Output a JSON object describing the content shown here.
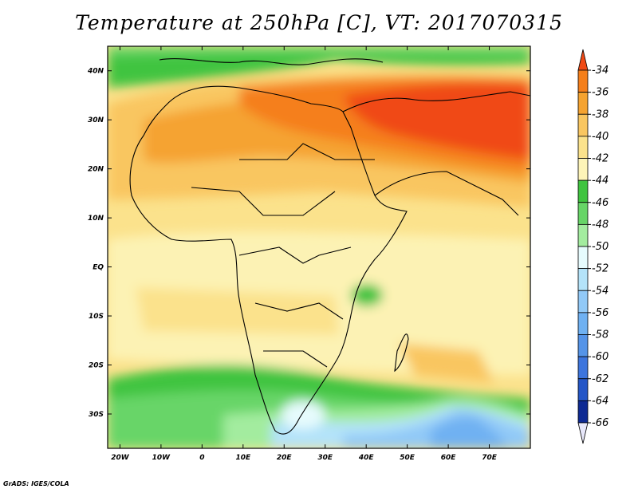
{
  "title": "Temperature at 250hPa [C], VT: 2017070315",
  "footer": "GrADS: IGES/COLA",
  "map": {
    "lon_range": [
      -23,
      80
    ],
    "lat_range": [
      -37,
      45
    ],
    "lon_ticks": [
      "20W",
      "10W",
      "0",
      "10E",
      "20E",
      "30E",
      "40E",
      "50E",
      "60E",
      "70E"
    ],
    "lat_ticks": [
      "40N",
      "30N",
      "20N",
      "10N",
      "EQ",
      "10S",
      "20S",
      "30S"
    ]
  },
  "colorbar": {
    "labels": [
      "-34",
      "-36",
      "-38",
      "-40",
      "-42",
      "-44",
      "-46",
      "-48",
      "-50",
      "-52",
      "-54",
      "-56",
      "-58",
      "-60",
      "-62",
      "-64",
      "-66"
    ],
    "colors": [
      "#f04a15",
      "#f57f1a",
      "#f5a330",
      "#f9c660",
      "#fbe28c",
      "#fdf4b8",
      "#3fc43f",
      "#67d567",
      "#a3ec9f",
      "#e6fbfd",
      "#b4e3f9",
      "#91c9f7",
      "#6fb1f2",
      "#5594e8",
      "#3d75dd",
      "#2456c7",
      "#0e2a93",
      "#0a1466"
    ]
  }
}
